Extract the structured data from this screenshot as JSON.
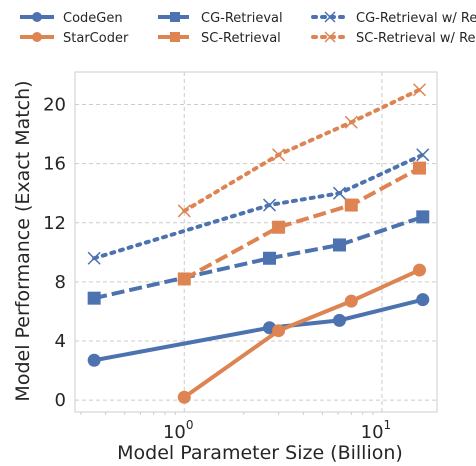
{
  "chart_data": {
    "type": "line",
    "title": "",
    "xlabel": "Model Parameter Size (Billion)",
    "ylabel": "Model Performance (Exact Match)",
    "x_scale": "log",
    "xlim": [
      0.28,
      19
    ],
    "ylim": [
      -0.8,
      22.2
    ],
    "x_ticks": [
      {
        "value": 1,
        "base": "10",
        "exp": "0"
      },
      {
        "value": 10,
        "base": "10",
        "exp": "1"
      }
    ],
    "y_ticks": [
      0,
      4,
      8,
      12,
      16,
      20
    ],
    "grid": true,
    "legend_position": "top",
    "series": [
      {
        "name": "CodeGen",
        "color": "#4c72b0",
        "style": "solid",
        "marker": "circle",
        "x": [
          0.35,
          2.7,
          6.1,
          16.1
        ],
        "y": [
          2.7,
          4.9,
          5.4,
          6.8
        ]
      },
      {
        "name": "StarCoder",
        "color": "#dd8452",
        "style": "solid",
        "marker": "circle",
        "x": [
          1,
          3,
          7,
          15.5
        ],
        "y": [
          0.2,
          4.7,
          6.7,
          8.8
        ]
      },
      {
        "name": "CG-Retrieval",
        "color": "#4c72b0",
        "style": "dashed",
        "marker": "square",
        "x": [
          0.35,
          2.7,
          6.1,
          16.1
        ],
        "y": [
          6.9,
          9.6,
          10.5,
          12.4
        ]
      },
      {
        "name": "SC-Retrieval",
        "color": "#dd8452",
        "style": "dashed",
        "marker": "square",
        "x": [
          1,
          3,
          7,
          15.5
        ],
        "y": [
          8.2,
          11.7,
          13.2,
          15.7
        ]
      },
      {
        "name": "CG-Retrieval w/ Re",
        "color": "#4c72b0",
        "style": "dotted",
        "marker": "x",
        "x": [
          0.35,
          2.7,
          6.1,
          16.1
        ],
        "y": [
          9.6,
          13.2,
          14.0,
          16.6
        ]
      },
      {
        "name": "SC-Retrieval w/ Re",
        "color": "#dd8452",
        "style": "dotted",
        "marker": "x",
        "x": [
          1,
          3,
          7,
          15.5
        ],
        "y": [
          12.8,
          16.6,
          18.8,
          21.0
        ]
      }
    ]
  }
}
